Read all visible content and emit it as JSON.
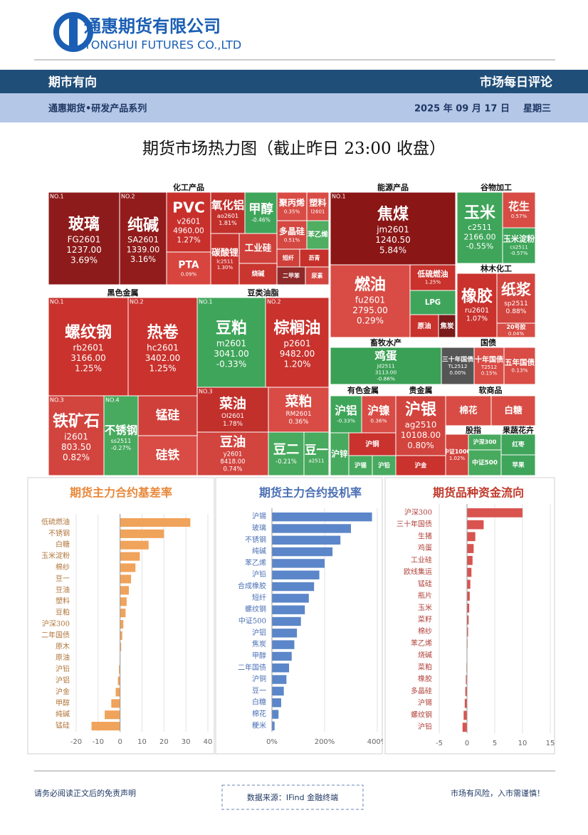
{
  "header": {
    "company": "通惠期货有限公司",
    "company_en": "TONGHUI FUTURES CO.,LTD",
    "column": "期市有向",
    "series_name": "市场每日评论",
    "department": "通惠期货•研发产品系列",
    "date": "2025 年 09 月 17 日",
    "weekday": "星期三"
  },
  "title": "期货市场热力图（截止昨日 23:00 收盘）",
  "heatmap": {
    "sections": [
      "化工产品",
      "能源产品",
      "谷物加工",
      "林木化工",
      "黑色金属",
      "豆类油脂",
      "畜牧水产",
      "国债",
      "有色金属",
      "贵金属",
      "软商品",
      "股指",
      "果蔬花卉"
    ],
    "tiles": [
      {
        "rank": "NO.1",
        "name": "玻璃",
        "code": "FG2601",
        "price": "1237.00",
        "change": "3.69%",
        "color": "#8e1b1b"
      },
      {
        "rank": "NO.2",
        "name": "纯碱",
        "code": "SA2601",
        "price": "1339.00",
        "change": "3.16%",
        "color": "#921c1c"
      },
      {
        "name": "PVC",
        "code": "v2601",
        "price": "4960.00",
        "change": "1.27%",
        "color": "#c8302c"
      },
      {
        "name": "PTA",
        "change": "0.09%",
        "color": "#d8453e"
      },
      {
        "name": "氧化铝",
        "code": "ao2601",
        "change": "1.81%",
        "color": "#c2302b"
      },
      {
        "name": "碳酸锂",
        "code": "lc2511",
        "change": "1.30%",
        "color": "#c8322d"
      },
      {
        "name": "甲醇",
        "change": "-0.46%",
        "color": "#3fa55a"
      },
      {
        "name": "工业硅",
        "color": "#d0403a"
      },
      {
        "name": "烧碱",
        "color": "#c9362f"
      },
      {
        "name": "聚丙烯",
        "change": "0.35%",
        "color": "#d84c45"
      },
      {
        "name": "塑料",
        "code": "l2601",
        "color": "#d84c45"
      },
      {
        "name": "多晶硅",
        "change": "0.51%",
        "color": "#d44842"
      },
      {
        "name": "苯乙烯",
        "color": "#4fae62"
      },
      {
        "name": "短纤",
        "color": "#cf3f3a"
      },
      {
        "name": "沥青",
        "color": "#c6302b"
      },
      {
        "name": "二甲苯",
        "color": "#8e2a2a"
      },
      {
        "name": "尿素",
        "color": "#d24540"
      },
      {
        "rank": "NO.1",
        "name": "螺纹钢",
        "code": "rb2601",
        "price": "3166.00",
        "change": "1.25%",
        "color": "#c9322d"
      },
      {
        "rank": "NO.2",
        "name": "热卷",
        "code": "hc2601",
        "price": "3402.00",
        "change": "1.25%",
        "color": "#c9322d"
      },
      {
        "rank": "NO.3",
        "name": "铁矿石",
        "code": "i2601",
        "price": "803.50",
        "change": "0.82%",
        "color": "#d2443e"
      },
      {
        "rank": "NO.4",
        "name": "不锈钢",
        "code": "ss2511",
        "change": "-0.27%",
        "color": "#48aa5e"
      },
      {
        "name": "锰硅",
        "color": "#d0403a"
      },
      {
        "name": "硅铁",
        "color": "#d84c45"
      },
      {
        "rank": "NO.1",
        "name": "豆粕",
        "code": "m2601",
        "price": "3041.00",
        "change": "-0.33%",
        "color": "#3fa55a"
      },
      {
        "rank": "NO.2",
        "name": "棕榈油",
        "code": "p2601",
        "price": "9482.00",
        "change": "1.20%",
        "color": "#c9322d"
      },
      {
        "rank": "NO.3",
        "name": "菜油",
        "code": "OI2601",
        "change": "1.78%",
        "color": "#c2302b"
      },
      {
        "name": "菜粕",
        "code": "RM2601",
        "change": "0.36%",
        "color": "#d84c45"
      },
      {
        "name": "豆油",
        "code": "y2601",
        "price": "8418.00",
        "change": "0.74%",
        "color": "#d2443e"
      },
      {
        "name": "豆二",
        "change": "-0.21%",
        "color": "#48aa5e"
      },
      {
        "name": "豆一",
        "code": "a2511",
        "color": "#48aa5e"
      },
      {
        "rank": "NO.1",
        "name": "焦煤",
        "code": "jm2601",
        "price": "1240.50",
        "change": "5.84%",
        "color": "#8a1616"
      },
      {
        "name": "燃油",
        "code": "fu2601",
        "price": "2795.00",
        "change": "0.29%",
        "color": "#d84c45"
      },
      {
        "name": "低硫燃油",
        "change": "1.25%",
        "color": "#c9322d"
      },
      {
        "name": "LPG",
        "color": "#3fa55a"
      },
      {
        "name": "原油",
        "color": "#c9322d"
      },
      {
        "name": "焦炭",
        "color": "#7a1a1a"
      },
      {
        "name": "玉米",
        "code": "c2511",
        "price": "2166.00",
        "change": "-0.55%",
        "color": "#3fa55a"
      },
      {
        "name": "花生",
        "change": "0.57%",
        "color": "#d84c45"
      },
      {
        "name": "玉米淀粉",
        "code": "cs2511",
        "change": "-0.57%",
        "color": "#3fa55a"
      },
      {
        "name": "橡胶",
        "code": "ru2601",
        "change": "1.07%",
        "color": "#c9322d"
      },
      {
        "name": "纸浆",
        "code": "sp2511",
        "change": "0.88%",
        "color": "#d2443e"
      },
      {
        "name": "20号胶",
        "change": "0.04%",
        "color": "#d84c45"
      },
      {
        "name": "鸡蛋",
        "code": "jd2511",
        "price": "3113.00",
        "change": "-0.86%",
        "color": "#3aa055"
      },
      {
        "name": "三十年国债",
        "code": "TL2512",
        "change": "0.00%",
        "color": "#555555"
      },
      {
        "name": "十年国债",
        "code": "T2512",
        "change": "0.15%",
        "color": "#d84c45"
      },
      {
        "name": "五年国债",
        "change": "0.13%",
        "color": "#d84c45"
      },
      {
        "name": "沪铝",
        "change": "-0.33%",
        "color": "#3fa55a"
      },
      {
        "name": "沪镍",
        "change": "0.36%",
        "color": "#d84c45"
      },
      {
        "name": "沪锌",
        "color": "#48aa5e"
      },
      {
        "name": "沪铜",
        "color": "#c9322d"
      },
      {
        "name": "沪锡",
        "color": "#48aa5e"
      },
      {
        "name": "沪铅",
        "color": "#48aa5e"
      },
      {
        "name": "沪银",
        "code": "ag2510",
        "price": "10108.00",
        "change": "0.80%",
        "color": "#d2443e"
      },
      {
        "name": "沪金",
        "color": "#c9322d"
      },
      {
        "name": "棉花",
        "color": "#d84c45"
      },
      {
        "name": "白糖",
        "color": "#d84c45"
      },
      {
        "name": "中证1000",
        "change": "1.02%",
        "color": "#d2443e"
      },
      {
        "name": "沪深300",
        "color": "#48aa5e"
      },
      {
        "name": "中证500",
        "color": "#48aa5e"
      },
      {
        "name": "红枣",
        "color": "#3fa55a"
      },
      {
        "name": "苹果",
        "color": "#3fa55a"
      }
    ]
  },
  "chart_data": [
    {
      "type": "bar",
      "orientation": "horizontal",
      "title": "期货主力合约基差率",
      "title_color": "#e8883a",
      "label_color": "#b0763a",
      "color": "#f0a35a",
      "categories": [
        "低硫燃油",
        "不锈钢",
        "白糖",
        "玉米淀粉",
        "棉纱",
        "豆一",
        "豆油",
        "塑料",
        "豆粕",
        "沪深300",
        "二年国债",
        "原木",
        "原油",
        "沪铅",
        "沪铝",
        "沪金",
        "甲醇",
        "纯碱",
        "锰硅"
      ],
      "values": [
        32,
        20,
        13,
        9,
        7,
        5,
        4,
        3,
        2.5,
        1.5,
        1,
        0.5,
        0,
        -0.5,
        -1,
        -2,
        -4,
        -7,
        -13
      ],
      "xlim": [
        -20,
        40
      ],
      "xticks": [
        -20,
        -10,
        0,
        10,
        20,
        30,
        40
      ],
      "grid": true
    },
    {
      "type": "bar",
      "orientation": "horizontal",
      "title": "期货主力合约投机率",
      "title_color": "#4a6fb5",
      "label_color": "#4a6fb5",
      "color": "#5b86c9",
      "categories": [
        "沪锡",
        "玻璃",
        "不锈钢",
        "纯碱",
        "苯乙烯",
        "沪铅",
        "合成橡胶",
        "短纤",
        "螺纹钢",
        "中证500",
        "沪铝",
        "焦炭",
        "甲醇",
        "二年国债",
        "沪铜",
        "豆一",
        "白糖",
        "棉花",
        "粳米"
      ],
      "values": [
        380,
        300,
        260,
        230,
        200,
        180,
        160,
        140,
        125,
        110,
        95,
        85,
        75,
        65,
        55,
        45,
        35,
        25,
        10
      ],
      "xlim": [
        0,
        400
      ],
      "xticks": [
        {
          "value": 0,
          "label": "0%"
        },
        {
          "value": 200,
          "label": "200%"
        },
        {
          "value": 400,
          "label": "400%"
        }
      ],
      "grid": true
    },
    {
      "type": "bar",
      "orientation": "horizontal",
      "title": "期货品种资金流向",
      "title_color": "#c0392b",
      "label_color": "#b0413a",
      "color": "#d9534f",
      "categories": [
        "沪深300",
        "三十年国债",
        "生猪",
        "鸡蛋",
        "工业硅",
        "欧线集运",
        "锰硅",
        "瓶片",
        "玉米",
        "菜籽",
        "棉纱",
        "苯乙烯",
        "烧碱",
        "菜粕",
        "橡胶",
        "多晶硅",
        "沪锡",
        "螺纹钢",
        "沪铅"
      ],
      "values": [
        10,
        3,
        1.5,
        1.2,
        1,
        0.8,
        0.6,
        0.5,
        0.4,
        0.3,
        0.2,
        0.1,
        0,
        -0.1,
        -0.2,
        -0.3,
        -0.4,
        -0.6,
        -0.8
      ],
      "xlim": [
        -5,
        15
      ],
      "xticks": [
        -5,
        0,
        5,
        10,
        15
      ],
      "grid": true
    }
  ],
  "footer": {
    "disclaimer": "请务必阅读正文后的免责声明",
    "source": "数据来源：IFind 金融终端",
    "risk": "市场有风险，入市需谨慎！"
  }
}
